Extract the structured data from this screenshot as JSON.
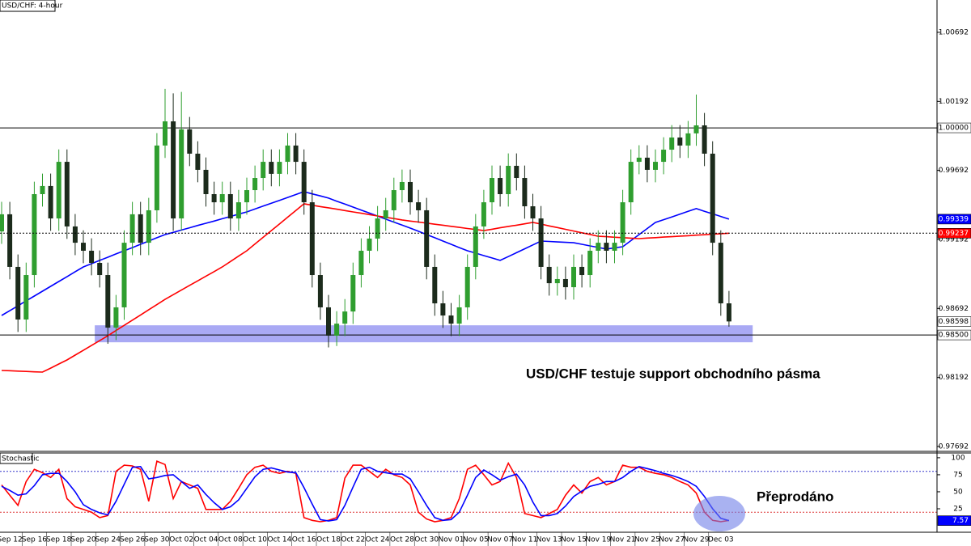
{
  "chart_data": [
    {
      "type": "candlestick",
      "title": "USD/CHF: 4-hour",
      "ylim": [
        0.97657,
        1.00926
      ],
      "yticks": [
        1.00692,
        1.00192,
        0.99692,
        0.99192,
        0.98692,
        0.98192,
        0.97692
      ],
      "up_color": "#2f9e2f",
      "down_color": "#1c2b1c",
      "categories": [
        null,
        "Sep 12",
        null,
        null,
        "Sep 16",
        null,
        null,
        "Sep 18",
        null,
        null,
        "Sep 20",
        null,
        null,
        "Sep 24",
        null,
        null,
        "Sep 26",
        null,
        null,
        "Sep 30",
        null,
        null,
        "Oct 02",
        null,
        null,
        "Oct 04",
        null,
        null,
        "Oct 08",
        null,
        null,
        "Oct 10",
        null,
        null,
        "Oct 14",
        null,
        null,
        "Oct 16",
        null,
        null,
        "Oct 18",
        null,
        null,
        "Oct 22",
        null,
        null,
        "Oct 24",
        null,
        null,
        "Oct 28",
        null,
        null,
        "Oct 30",
        null,
        null,
        "Nov 01",
        null,
        null,
        "Nov 05",
        null,
        null,
        "Nov 07",
        null,
        null,
        "Nov 11",
        null,
        null,
        "Nov 13",
        null,
        null,
        "Nov 15",
        null,
        null,
        "Nov 19",
        null,
        null,
        "Nov 21",
        null,
        null,
        "Nov 25",
        null,
        null,
        "Nov 27",
        null,
        null,
        "Nov 29",
        null,
        null,
        "Dec 03",
        null
      ],
      "ohlc": [
        [
          0.9925,
          0.99464,
          0.9916,
          0.99374
        ],
        [
          0.99374,
          0.99464,
          0.98903,
          0.98993
        ],
        [
          0.98993,
          0.99083,
          0.98522,
          0.98612
        ],
        [
          0.98612,
          0.99024,
          0.98522,
          0.98934
        ],
        [
          0.98934,
          0.9961,
          0.98844,
          0.9952
        ],
        [
          0.9952,
          0.99669,
          0.9943,
          0.99579
        ],
        [
          0.99579,
          0.99669,
          0.99254,
          0.99344
        ],
        [
          0.99344,
          0.99844,
          0.99254,
          0.99754
        ],
        [
          0.99754,
          0.99844,
          0.99196,
          0.99286
        ],
        [
          0.99286,
          0.99376,
          0.99078,
          0.99168
        ],
        [
          0.99168,
          0.99258,
          0.9902,
          0.9911
        ],
        [
          0.9911,
          0.992,
          0.98932,
          0.99022
        ],
        [
          0.99022,
          0.99112,
          0.98844,
          0.98934
        ],
        [
          0.98934,
          0.99024,
          0.98436,
          0.98553
        ],
        [
          0.98553,
          0.9879,
          0.98463,
          0.987
        ],
        [
          0.987,
          0.99258,
          0.9861,
          0.99168
        ],
        [
          0.99168,
          0.99464,
          0.99078,
          0.99374
        ],
        [
          0.99374,
          0.99464,
          0.99078,
          0.99168
        ],
        [
          0.99168,
          0.99493,
          0.99078,
          0.99403
        ],
        [
          0.99403,
          0.99962,
          0.99313,
          0.99872
        ],
        [
          0.99872,
          1.00282,
          0.99782,
          1.00047
        ],
        [
          1.00047,
          1.0025,
          0.99254,
          0.99344
        ],
        [
          0.99344,
          1.0026,
          0.99254,
          0.99989
        ],
        [
          0.99989,
          1.00079,
          0.99723,
          0.99813
        ],
        [
          0.99813,
          0.99903,
          0.99606,
          0.99696
        ],
        [
          0.99696,
          0.99786,
          0.9943,
          0.9952
        ],
        [
          0.9952,
          0.9961,
          0.99371,
          0.99461
        ],
        [
          0.99461,
          0.9961,
          0.99371,
          0.9952
        ],
        [
          0.9952,
          0.9961,
          0.99254,
          0.99344
        ],
        [
          0.99344,
          0.99551,
          0.99254,
          0.99461
        ],
        [
          0.99461,
          0.99639,
          0.99371,
          0.99549
        ],
        [
          0.99549,
          0.99727,
          0.99459,
          0.99637
        ],
        [
          0.99637,
          0.99844,
          0.99547,
          0.99754
        ],
        [
          0.99754,
          0.99844,
          0.99577,
          0.99667
        ],
        [
          0.99667,
          0.99844,
          0.99577,
          0.99754
        ],
        [
          0.99754,
          0.99962,
          0.99664,
          0.99872
        ],
        [
          0.99872,
          0.99962,
          0.99664,
          0.99754
        ],
        [
          0.99754,
          0.99844,
          0.99371,
          0.99461
        ],
        [
          0.99461,
          0.99551,
          0.98844,
          0.98934
        ],
        [
          0.98934,
          0.99024,
          0.9861,
          0.987
        ],
        [
          0.987,
          0.9879,
          0.9841,
          0.98495
        ],
        [
          0.98495,
          0.98672,
          0.9842,
          0.98582
        ],
        [
          0.98582,
          0.9876,
          0.98492,
          0.9867
        ],
        [
          0.9867,
          0.99024,
          0.9858,
          0.98934
        ],
        [
          0.98934,
          0.992,
          0.98844,
          0.9911
        ],
        [
          0.9911,
          0.99288,
          0.9902,
          0.99198
        ],
        [
          0.99198,
          0.99434,
          0.99108,
          0.99344
        ],
        [
          0.99344,
          0.99493,
          0.99254,
          0.99403
        ],
        [
          0.99403,
          0.99639,
          0.99313,
          0.99549
        ],
        [
          0.99549,
          0.99698,
          0.99459,
          0.99608
        ],
        [
          0.99608,
          0.99698,
          0.99371,
          0.99461
        ],
        [
          0.99461,
          0.99551,
          0.99313,
          0.99403
        ],
        [
          0.99403,
          0.99493,
          0.98903,
          0.98993
        ],
        [
          0.98993,
          0.99083,
          0.98639,
          0.98729
        ],
        [
          0.98729,
          0.98819,
          0.98551,
          0.98641
        ],
        [
          0.98641,
          0.98731,
          0.98492,
          0.98582
        ],
        [
          0.98582,
          0.9879,
          0.98492,
          0.987
        ],
        [
          0.987,
          0.99083,
          0.9861,
          0.98993
        ],
        [
          0.98993,
          0.99376,
          0.98903,
          0.99286
        ],
        [
          0.99286,
          0.99551,
          0.99196,
          0.99461
        ],
        [
          0.99461,
          0.99727,
          0.99371,
          0.99637
        ],
        [
          0.99637,
          0.99727,
          0.9943,
          0.9952
        ],
        [
          0.9952,
          0.99815,
          0.9943,
          0.99725
        ],
        [
          0.99725,
          0.99815,
          0.99547,
          0.99637
        ],
        [
          0.99637,
          0.99727,
          0.99342,
          0.99432
        ],
        [
          0.99432,
          0.99522,
          0.99254,
          0.99344
        ],
        [
          0.99344,
          0.99434,
          0.98903,
          0.98993
        ],
        [
          0.98993,
          0.99083,
          0.98785,
          0.98875
        ],
        [
          0.98875,
          0.98995,
          0.98785,
          0.98905
        ],
        [
          0.98905,
          0.98995,
          0.98756,
          0.98846
        ],
        [
          0.98846,
          0.99083,
          0.98756,
          0.98993
        ],
        [
          0.98993,
          0.99083,
          0.98844,
          0.98934
        ],
        [
          0.98934,
          0.992,
          0.98844,
          0.9911
        ],
        [
          0.9911,
          0.99258,
          0.9902,
          0.99168
        ],
        [
          0.99168,
          0.99258,
          0.9902,
          0.9911
        ],
        [
          0.9911,
          0.99258,
          0.9902,
          0.99168
        ],
        [
          0.99168,
          0.99551,
          0.99078,
          0.99461
        ],
        [
          0.99461,
          0.99844,
          0.99371,
          0.99754
        ],
        [
          0.99754,
          0.99874,
          0.99664,
          0.99784
        ],
        [
          0.99784,
          0.99874,
          0.99606,
          0.99696
        ],
        [
          0.99696,
          0.99844,
          0.99606,
          0.99754
        ],
        [
          0.99754,
          0.99932,
          0.99664,
          0.99842
        ],
        [
          0.99842,
          1.0002,
          0.99752,
          0.9993
        ],
        [
          0.9993,
          1.0002,
          0.99782,
          0.99872
        ],
        [
          0.99872,
          1.0005,
          0.99782,
          0.9996
        ],
        [
          0.9996,
          1.00241,
          0.9987,
          1.00018
        ],
        [
          1.00018,
          1.00108,
          0.99723,
          0.99813
        ],
        [
          0.99813,
          0.99903,
          0.99078,
          0.99168
        ],
        [
          0.99168,
          0.99258,
          0.98639,
          0.98729
        ],
        [
          0.98729,
          0.98819,
          0.9856,
          0.98598
        ]
      ],
      "series": [
        {
          "color": "#0000ff",
          "values": [
            0.98641,
            0.98676,
            0.98711,
            0.98747,
            0.98782,
            0.98817,
            0.98852,
            0.98887,
            0.98922,
            0.98958,
            0.98993,
            0.99016,
            0.9904,
            0.99063,
            0.99087,
            0.9911,
            0.99133,
            0.99157,
            0.9918,
            0.99204,
            0.99227,
            0.99243,
            0.9926,
            0.99276,
            0.99293,
            0.99309,
            0.99325,
            0.99342,
            0.99358,
            0.99375,
            0.99391,
            0.99412,
            0.99433,
            0.99454,
            0.99475,
            0.99496,
            0.99517,
            0.99538,
            0.99522,
            0.99507,
            0.99491,
            0.99469,
            0.99448,
            0.99426,
            0.99404,
            0.99383,
            0.99361,
            0.99339,
            0.99317,
            0.99296,
            0.99274,
            0.99251,
            0.99227,
            0.99204,
            0.9918,
            0.99157,
            0.99133,
            0.9911,
            0.99093,
            0.99075,
            0.99058,
            0.9904,
            0.99068,
            0.99096,
            0.99124,
            0.99152,
            0.9918,
            0.99177,
            0.99174,
            0.99171,
            0.99168,
            0.99157,
            0.99145,
            0.99134,
            0.99122,
            0.99131,
            0.99139,
            0.99183,
            0.99227,
            0.99271,
            0.99315,
            0.99335,
            0.99355,
            0.99375,
            0.99395,
            0.99415,
            0.99396,
            0.99377,
            0.99358,
            0.99339
          ]
        },
        {
          "color": "#ff0000",
          "values": [
            0.98243,
            0.98241,
            0.98238,
            0.98236,
            0.98233,
            0.98231,
            0.9826,
            0.9829,
            0.98319,
            0.98354,
            0.98389,
            0.98424,
            0.98459,
            0.98494,
            0.98532,
            0.9857,
            0.98607,
            0.98645,
            0.98683,
            0.9872,
            0.98758,
            0.98792,
            0.98825,
            0.98859,
            0.98892,
            0.98926,
            0.98959,
            0.98993,
            0.99032,
            0.99071,
            0.9911,
            0.99159,
            0.99207,
            0.99256,
            0.99304,
            0.99353,
            0.99401,
            0.9945,
            0.9944,
            0.9943,
            0.99421,
            0.99411,
            0.99401,
            0.99391,
            0.99382,
            0.99372,
            0.99362,
            0.99352,
            0.99343,
            0.99333,
            0.99325,
            0.99318,
            0.9931,
            0.99302,
            0.99295,
            0.99287,
            0.99279,
            0.99271,
            0.99264,
            0.99256,
            0.99266,
            0.99276,
            0.99286,
            0.99295,
            0.99305,
            0.99315,
            0.99303,
            0.9929,
            0.99278,
            0.99265,
            0.99253,
            0.9924,
            0.99228,
            0.99215,
            0.99212,
            0.99208,
            0.99205,
            0.99201,
            0.99198,
            0.99202,
            0.99205,
            0.99209,
            0.99212,
            0.99216,
            0.99219,
            0.99223,
            0.99226,
            0.9923,
            0.99233,
            0.99237
          ]
        }
      ],
      "levels": [
        {
          "value": 1,
          "label": "1.00000"
        },
        {
          "value": 0.985,
          "label": "0.98500"
        }
      ],
      "zone": {
        "low": 0.98447,
        "high": 0.9857,
        "from": 11.4,
        "to": 91.9,
        "color": "#8c8cf0"
      },
      "annotations": [
        "USD/CHF testuje support obchodního pásma"
      ]
    },
    {
      "type": "line",
      "title": "Stochastic",
      "ylim": [
        -8.3,
        107
      ],
      "yticks": [
        25,
        50,
        75,
        100
      ],
      "levels": [
        {
          "value": 80,
          "color": "#3333cc"
        },
        {
          "value": 20,
          "color": "#dd3333"
        }
      ],
      "series": [
        {
          "color": "#ff0000",
          "values": [
            60,
            45,
            30,
            65,
            83,
            78,
            71,
            83,
            40,
            28,
            24,
            20,
            12,
            15,
            80,
            89,
            88,
            83,
            36,
            95,
            90,
            40,
            65,
            60,
            55,
            24,
            24,
            24,
            36,
            55,
            75,
            86,
            89,
            80,
            77,
            80,
            77,
            12,
            8,
            6,
            8,
            12,
            70,
            89,
            89,
            80,
            71,
            83,
            75,
            71,
            60,
            20,
            10,
            6,
            8,
            12,
            40,
            83,
            89,
            75,
            60,
            65,
            92,
            71,
            18,
            15,
            12,
            18,
            24,
            45,
            60,
            48,
            65,
            71,
            60,
            65,
            89,
            86,
            86,
            80,
            77,
            75,
            71,
            65,
            60,
            48,
            20,
            8,
            6,
            8
          ]
        },
        {
          "color": "#0000ff",
          "values": [
            58,
            52,
            45,
            47,
            59,
            75,
            77,
            77,
            65,
            50,
            31,
            24,
            19,
            16,
            36,
            61,
            86,
            87,
            69,
            71,
            74,
            75,
            65,
            55,
            60,
            46,
            34,
            24,
            28,
            38,
            55,
            72,
            83,
            85,
            82,
            79,
            78,
            56,
            32,
            9,
            7,
            9,
            30,
            57,
            83,
            86,
            80,
            78,
            76,
            76,
            69,
            50,
            30,
            12,
            8,
            9,
            20,
            45,
            71,
            82,
            75,
            67,
            72,
            76,
            60,
            35,
            15,
            15,
            18,
            29,
            43,
            51,
            58,
            61,
            65,
            65,
            71,
            80,
            87,
            84,
            81,
            77,
            74,
            70,
            65,
            58,
            43,
            25,
            11,
            7.57
          ]
        }
      ],
      "annotations": [
        "Přeprodáno"
      ]
    }
  ]
}
